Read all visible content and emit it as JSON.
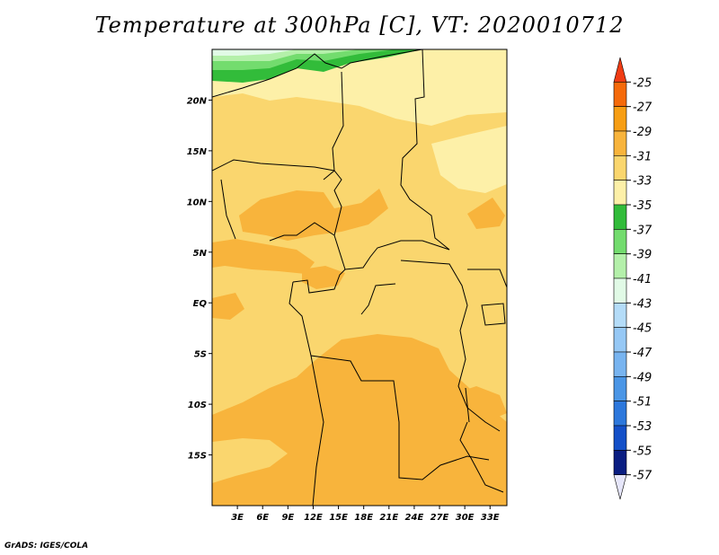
{
  "chart_data": {
    "type": "heatmap",
    "title": "Temperature at 300hPa [C], VT: 2020010712",
    "variable": "Temperature",
    "level": "300hPa",
    "units": "C",
    "valid_time": "2020010712",
    "x_ticks": [
      "3E",
      "6E",
      "9E",
      "12E",
      "15E",
      "18E",
      "21E",
      "24E",
      "27E",
      "30E",
      "33E"
    ],
    "x_tick_values": [
      3,
      6,
      9,
      12,
      15,
      18,
      21,
      24,
      27,
      30,
      33
    ],
    "y_ticks": [
      "20N",
      "15N",
      "10N",
      "5N",
      "EQ",
      "5S",
      "10S",
      "15S"
    ],
    "y_tick_values": [
      20,
      15,
      10,
      5,
      0,
      -5,
      -10,
      -15
    ],
    "xlim": [
      0,
      35
    ],
    "ylim": [
      -20,
      25
    ],
    "colorbar": {
      "levels": [
        -25,
        -27,
        -29,
        -31,
        -33,
        -35,
        -37,
        -39,
        -41,
        -43,
        -45,
        -47,
        -49,
        -51,
        -53,
        -55,
        -57
      ],
      "labels": [
        "-25",
        "-27",
        "-29",
        "-31",
        "-33",
        "-35",
        "-37",
        "-39",
        "-41",
        "-43",
        "-45",
        "-47",
        "-49",
        "-51",
        "-53",
        "-55",
        "-57"
      ],
      "colors": [
        "#f03c14",
        "#f56a0a",
        "#f79e14",
        "#f8b43c",
        "#fad66e",
        "#fdf0a8",
        "#32bc3a",
        "#73dc6e",
        "#b4f0aa",
        "#e1fae6",
        "#b4dcf8",
        "#96c8f5",
        "#78b4f0",
        "#4b96e6",
        "#2d78dc",
        "#1450c8",
        "#0a1e82",
        "#e6e6fa"
      ]
    },
    "field": {
      "dominant_band": "-31 to -33",
      "warmer_band": "-29 to -31",
      "coolest_band": "-35 to -41"
    }
  },
  "credit": "GrADS: IGES/COLA"
}
